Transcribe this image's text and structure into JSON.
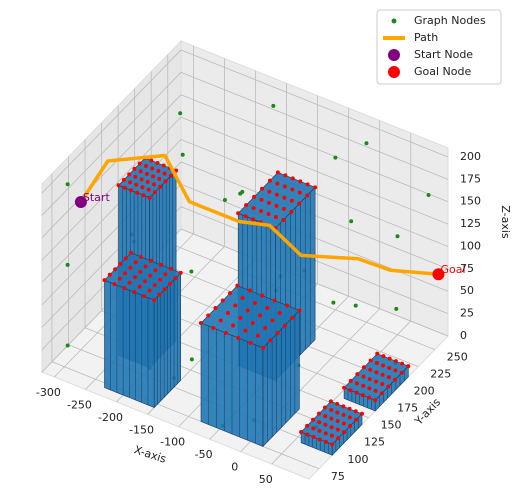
{
  "chart_data": {
    "type": "scatter3d",
    "xlabel": "X-axis",
    "ylabel": "Y-axis",
    "zlabel": "Z-axis",
    "xlim": [
      -320,
      110
    ],
    "ylim": [
      60,
      270
    ],
    "zlim": [
      0,
      210
    ],
    "xticks": [
      -300,
      -250,
      -200,
      -150,
      -100,
      -50,
      0,
      50
    ],
    "yticks": [
      75,
      100,
      125,
      150,
      175,
      200,
      225,
      250
    ],
    "zticks": [
      0,
      25,
      50,
      75,
      100,
      125,
      150,
      175,
      200
    ],
    "grid": true,
    "legend_position": "upper right",
    "nodes": {
      "name": "Graph Nodes",
      "color": "#1a8a1a",
      "x": [
        -300,
        -300,
        -300,
        -300,
        -300,
        -200,
        -200,
        -200,
        -150,
        -150,
        -100,
        -100,
        -100,
        -50,
        -50,
        0,
        0,
        0,
        0,
        50,
        50,
        50,
        100,
        100,
        100,
        100,
        -250,
        -250,
        -150,
        30,
        -200,
        -50,
        80
      ],
      "y": [
        80,
        80,
        80,
        180,
        250,
        80,
        160,
        250,
        100,
        200,
        80,
        130,
        250,
        160,
        250,
        80,
        120,
        200,
        250,
        100,
        180,
        250,
        80,
        140,
        200,
        250,
        130,
        220,
        250,
        80,
        110,
        80,
        220
      ],
      "z": [
        20,
        110,
        200,
        60,
        150,
        40,
        200,
        90,
        10,
        140,
        60,
        200,
        30,
        90,
        170,
        20,
        150,
        60,
        200,
        80,
        180,
        110,
        40,
        130,
        20,
        170,
        120,
        10,
        200,
        160,
        0,
        0,
        60
      ]
    },
    "path": {
      "name": "Path",
      "color": "orange",
      "x": [
        -300,
        -310,
        -250,
        -200,
        -120,
        -60,
        -20,
        40,
        60,
        100
      ],
      "y": [
        100,
        150,
        180,
        170,
        170,
        160,
        170,
        200,
        230,
        265
      ],
      "z": [
        165,
        170,
        170,
        140,
        140,
        160,
        130,
        120,
        90,
        70
      ]
    },
    "start": {
      "name": "Start Node",
      "label": "Start",
      "color": "purple",
      "x": -300,
      "y": 100,
      "z": 165
    },
    "goal": {
      "name": "Goal Node",
      "label": "Goal",
      "color": "red",
      "x": 100,
      "y": 265,
      "z": 70
    },
    "obstacles": [
      {
        "x": [
          -100,
          -40
        ],
        "y": [
          150,
          210
        ],
        "height": 170
      },
      {
        "x": [
          -250,
          -200
        ],
        "y": [
          110,
          150
        ],
        "height": 190
      },
      {
        "x": [
          60,
          110
        ],
        "y": [
          160,
          210
        ],
        "height": 12
      },
      {
        "x": [
          -230,
          -150
        ],
        "y": [
          70,
          110
        ],
        "height": 120
      },
      {
        "x": [
          -80,
          20
        ],
        "y": [
          75,
          130
        ],
        "height": 110
      },
      {
        "x": [
          60,
          110
        ],
        "y": [
          95,
          140
        ],
        "height": 12
      }
    ],
    "obstacle_color": "#1f77b4",
    "obstacle_node_color": "red"
  }
}
